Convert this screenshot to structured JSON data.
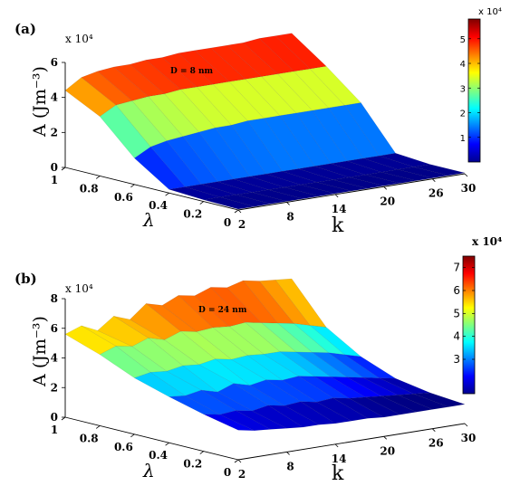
{
  "chart_data": [
    {
      "panel": "(a)",
      "type": "surface",
      "annotation": "D = 8 nm",
      "zlabel": "A (Jm⁻³)",
      "z_multiplier": "x 10⁴",
      "xlabel": "k",
      "ylabel": "λ",
      "k": [
        2,
        4,
        6,
        8,
        10,
        12,
        14,
        16,
        18,
        20,
        22,
        24,
        26,
        28,
        30
      ],
      "lambda": [
        0,
        0.2,
        0.4,
        0.6,
        0.8,
        1.0
      ],
      "x_ticks": [
        "2",
        "8",
        "14",
        "20",
        "26",
        "30"
      ],
      "y_ticks": [
        "0",
        "0.2",
        "0.4",
        "0.6",
        "0.8",
        "1"
      ],
      "z_ticks": [
        "0",
        "2",
        "4",
        "6"
      ],
      "zlim": [
        0,
        6
      ],
      "A_x1e4": [
        [
          0.05,
          0.05,
          0.05,
          0.05,
          0.05,
          0.05,
          0.05,
          0.05,
          0.05,
          0.05,
          0.05,
          0.05,
          0.05,
          0.05,
          0.05
        ],
        [
          0.1,
          0.1,
          0.09,
          0.08,
          0.08,
          0.07,
          0.07,
          0.06,
          0.06,
          0.05,
          0.05,
          0.05,
          0.05,
          0.05,
          0.05
        ],
        [
          0.2,
          0.2,
          0.2,
          0.2,
          0.2,
          0.2,
          0.2,
          0.2,
          0.2,
          0.2,
          0.2,
          0.2,
          0.2,
          0.2,
          0.2
        ],
        [
          1.5,
          2.0,
          2.2,
          2.3,
          2.4,
          2.5,
          2.5,
          2.6,
          2.6,
          2.6,
          2.6,
          2.6,
          2.6,
          2.6,
          2.6
        ],
        [
          3.4,
          3.9,
          4.0,
          4.1,
          4.1,
          4.2,
          4.2,
          4.2,
          4.2,
          4.2,
          4.2,
          4.2,
          4.2,
          4.2,
          4.2
        ],
        [
          4.4,
          5.0,
          5.2,
          5.3,
          5.3,
          5.4,
          5.4,
          5.5,
          5.5,
          5.5,
          5.5,
          5.5,
          5.6,
          5.6,
          5.6
        ]
      ],
      "colorbar_min": 0,
      "colorbar_max": 5.8,
      "colorbar_ticks": [
        "1",
        "2",
        "3",
        "4",
        "5"
      ],
      "colorbar_multiplier": "x 10⁴"
    },
    {
      "panel": "(b)",
      "type": "surface",
      "annotation": "D = 24 nm",
      "zlabel": "A (Jm⁻³)",
      "z_multiplier": "x 10⁴",
      "xlabel": "k",
      "ylabel": "λ",
      "k": [
        2,
        4,
        6,
        8,
        10,
        12,
        14,
        16,
        18,
        20,
        22,
        24,
        26,
        28,
        30
      ],
      "lambda": [
        0,
        0.2,
        0.4,
        0.6,
        0.8,
        1.0
      ],
      "x_ticks": [
        "2",
        "8",
        "14",
        "20",
        "26",
        "30"
      ],
      "y_ticks": [
        "0",
        "0.2",
        "0.4",
        "0.6",
        "0.8",
        "1"
      ],
      "z_ticks": [
        "0",
        "2",
        "4",
        "6",
        "8"
      ],
      "zlim": [
        0,
        8
      ],
      "A_x1e4": [
        [
          2.0,
          1.8,
          1.7,
          1.6,
          1.5,
          1.5,
          1.4,
          1.4,
          1.4,
          1.3,
          1.3,
          1.3,
          1.3,
          1.3,
          1.3
        ],
        [
          2.5,
          2.3,
          2.4,
          2.2,
          2.4,
          2.2,
          2.3,
          2.1,
          2.2,
          2.0,
          1.9,
          1.8,
          1.7,
          1.6,
          1.5
        ],
        [
          3.1,
          3.0,
          3.2,
          2.9,
          3.3,
          3.0,
          3.2,
          3.0,
          3.1,
          2.9,
          2.7,
          2.5,
          2.3,
          2.1,
          1.9
        ],
        [
          3.8,
          4.0,
          3.9,
          4.1,
          4.0,
          4.2,
          4.0,
          4.1,
          4.0,
          4.0,
          3.8,
          3.6,
          3.4,
          3.1,
          2.8
        ],
        [
          4.8,
          5.2,
          5.0,
          5.4,
          5.1,
          5.5,
          5.3,
          5.4,
          5.3,
          5.4,
          5.2,
          5.0,
          4.8,
          4.5,
          4.2
        ],
        [
          5.6,
          6.0,
          5.5,
          6.3,
          5.9,
          6.8,
          6.5,
          7.0,
          6.8,
          7.2,
          7.0,
          7.3,
          7.1,
          7.0,
          6.9
        ]
      ],
      "colorbar_min": 1.5,
      "colorbar_max": 7.5,
      "colorbar_ticks": [
        "3",
        "4",
        "5",
        "6",
        "7"
      ],
      "colorbar_multiplier": "x 10⁴"
    }
  ]
}
